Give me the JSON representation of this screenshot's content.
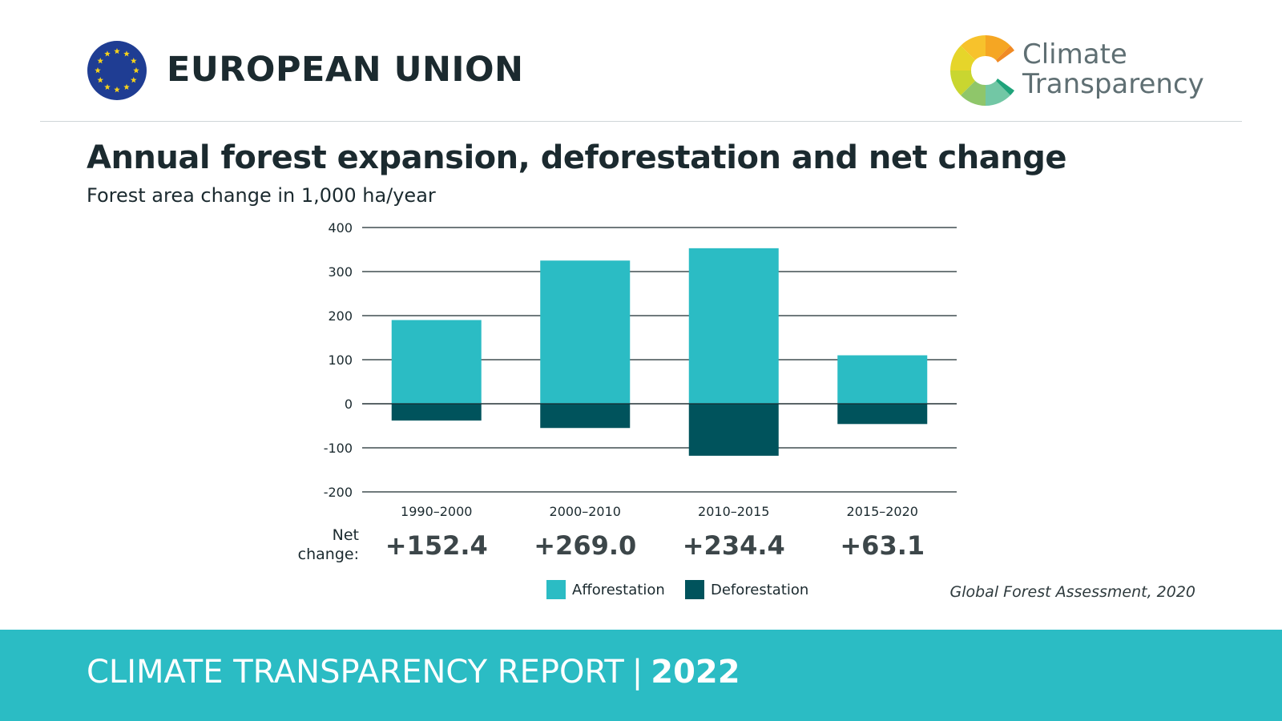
{
  "header": {
    "country": "EUROPEAN UNION",
    "brand_line1": "Climate",
    "brand_line2": "Transparency"
  },
  "colors": {
    "afforestation": "#2bbcc4",
    "deforestation": "#00535c",
    "footer": "#2bbcc4",
    "eu_blue": "#1f3d93",
    "eu_star": "#f7d21b"
  },
  "chart_data": {
    "type": "bar",
    "title": "Annual forest expansion, deforestation and net change",
    "subtitle": "Forest area change in 1,000 ha/year",
    "categories": [
      "1990–2000",
      "2000–2010",
      "2010–2015",
      "2015–2020"
    ],
    "series": [
      {
        "name": "Afforestation",
        "values": [
          190,
          325,
          353,
          110
        ]
      },
      {
        "name": "Deforestation",
        "values": [
          -38,
          -55,
          -118,
          -46
        ]
      }
    ],
    "ylim": [
      -200,
      400
    ],
    "yticks": [
      "400",
      "300",
      "200",
      "100",
      "0",
      "-100",
      "-200"
    ],
    "ytick_values": [
      400,
      300,
      200,
      100,
      0,
      -100,
      -200
    ],
    "net_change_label": [
      "Net",
      "change:"
    ],
    "net_change": [
      "+152.4",
      "+269.0",
      "+234.4",
      "+63.1"
    ],
    "grid": true,
    "legend_position": "bottom"
  },
  "source": "Global Forest Assessment, 2020",
  "footer": {
    "report": "CLIMATE TRANSPARENCY REPORT",
    "separator": "|",
    "year": "2022"
  }
}
